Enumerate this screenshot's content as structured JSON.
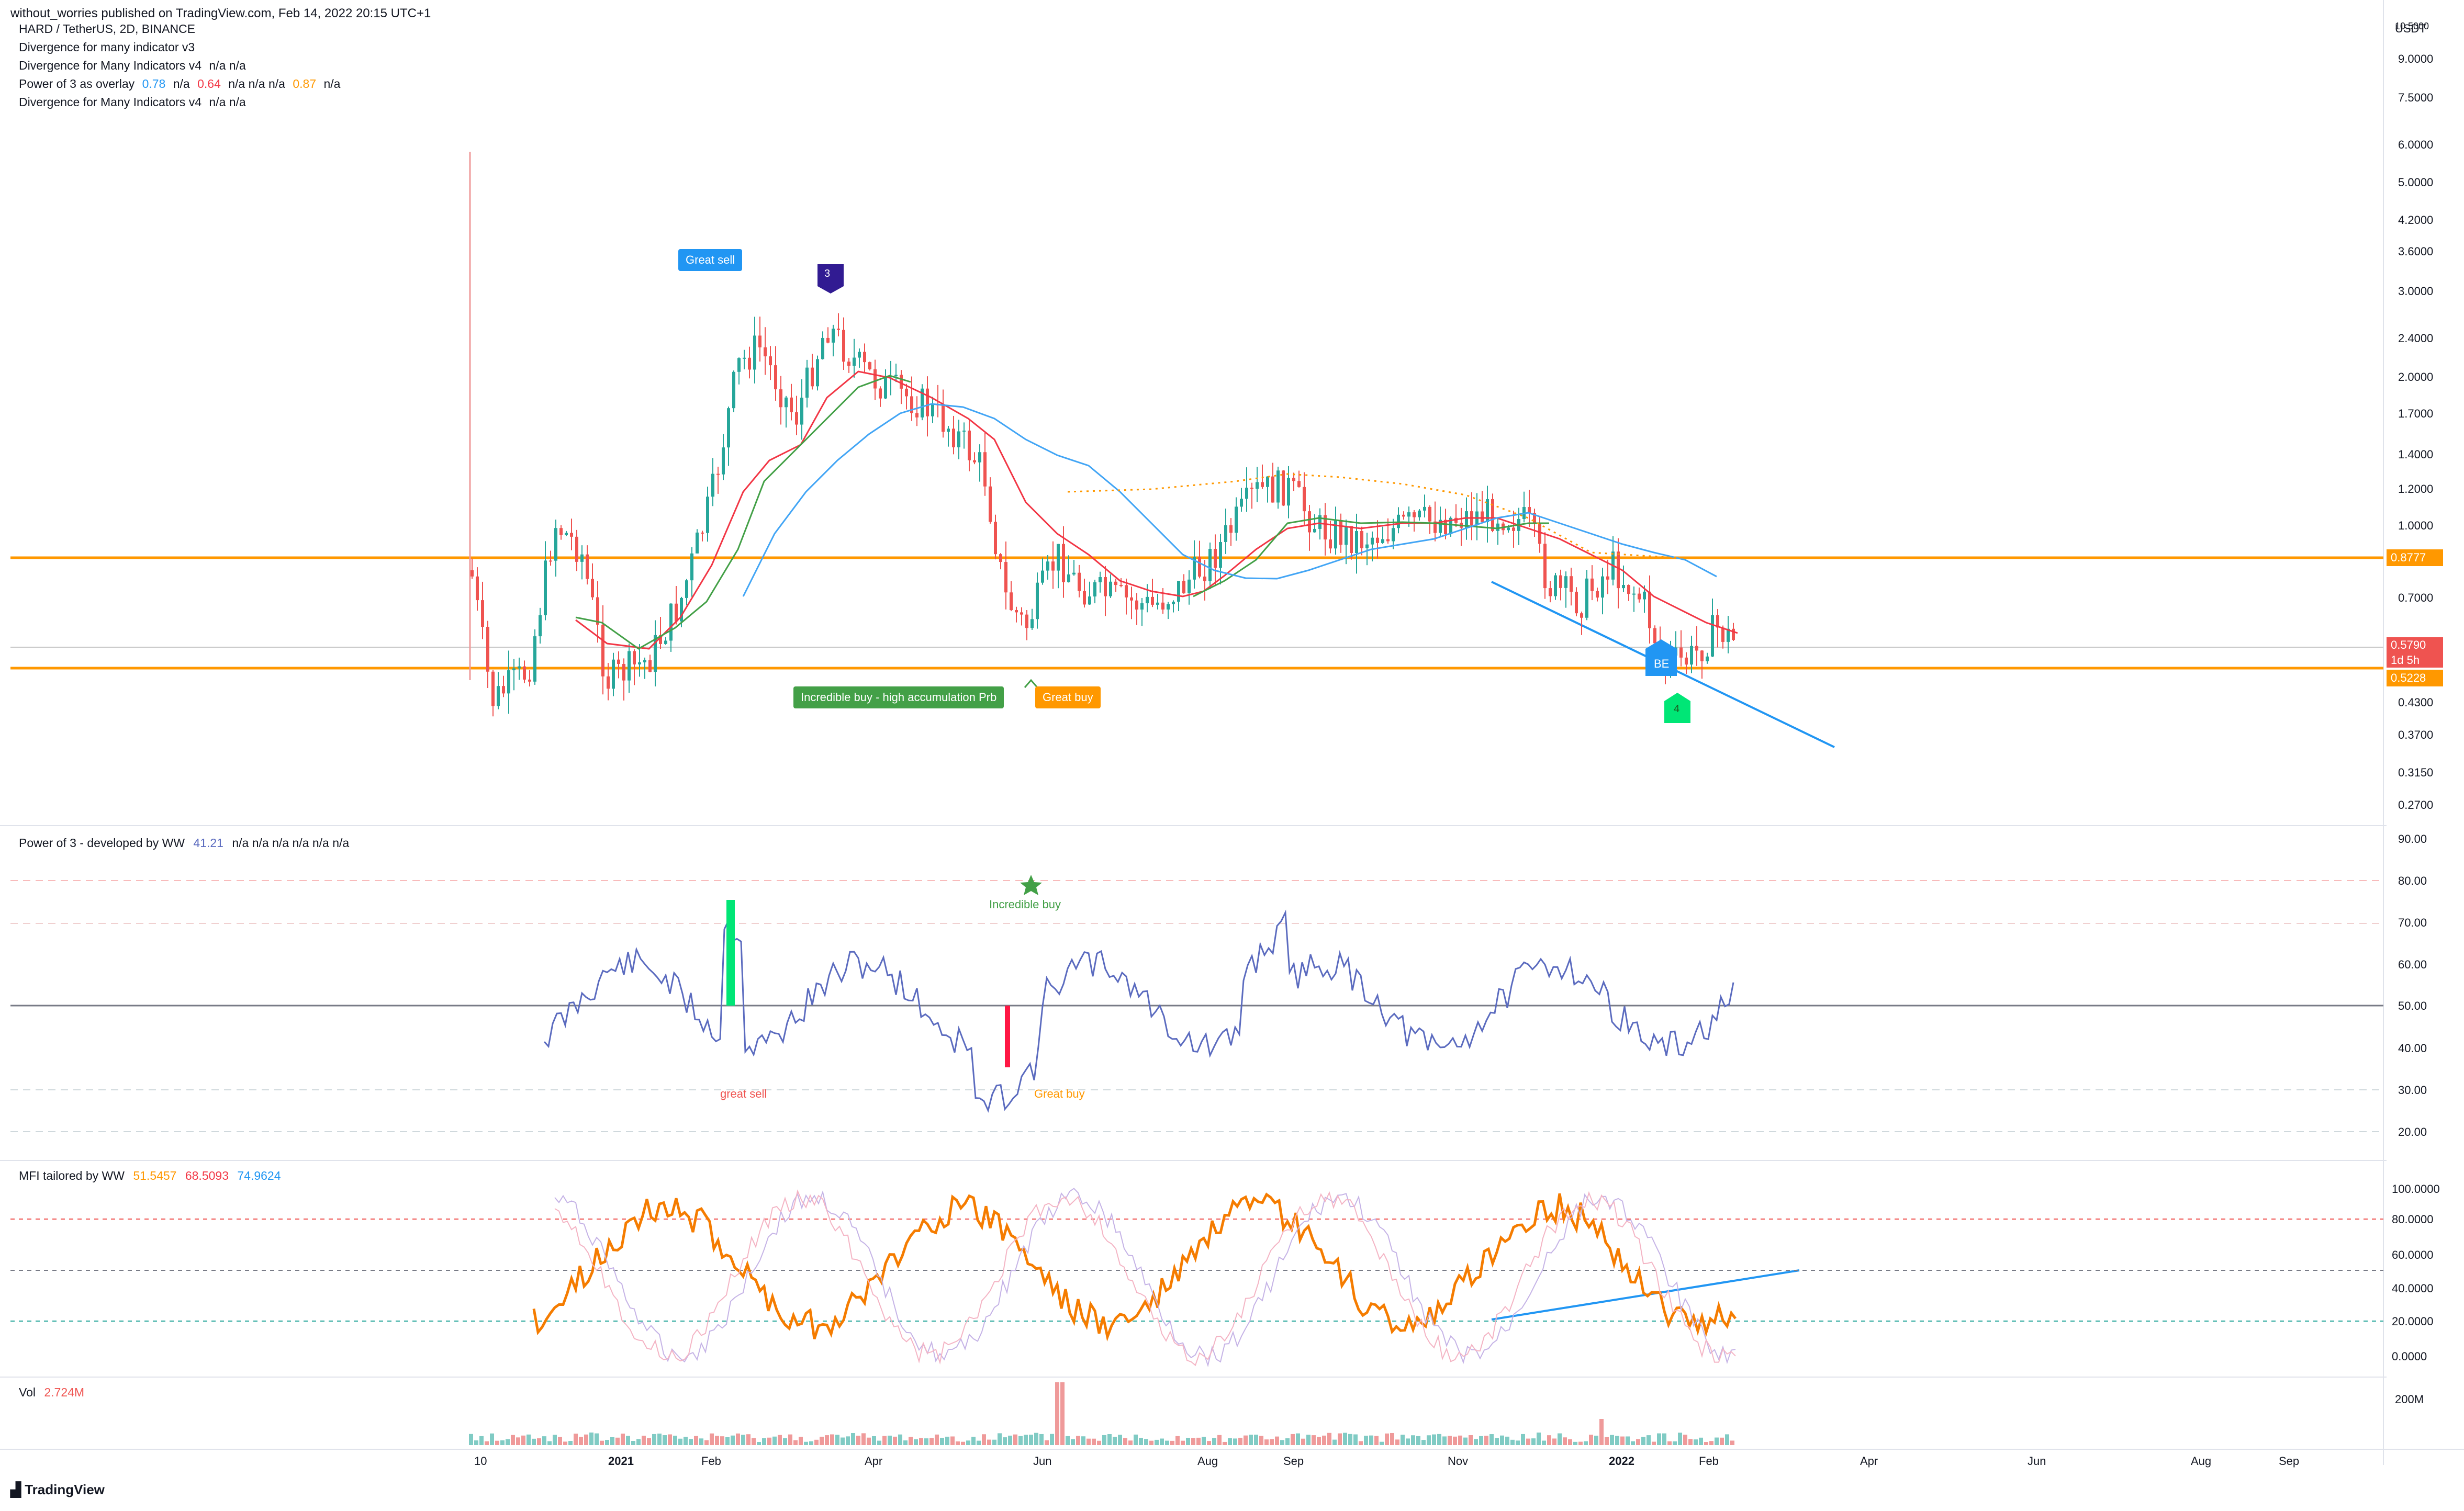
{
  "header": {
    "published": "without_worries published on TradingView.com, Feb 14, 2022 20:15 UTC+1"
  },
  "legend": {
    "symbol": "HARD / TetherUS, 2D, BINANCE",
    "line2": "Divergence for many indicator v3",
    "line3_name": "Divergence for Many Indicators v4",
    "line3_vals": "n/a  n/a",
    "line4_name": "Power of 3 as overlay",
    "line4_v1": "0.78",
    "line4_v2": "n/a",
    "line4_v3": "0.64",
    "line4_v4": "n/a  n/a  n/a",
    "line4_v5": "0.87",
    "line4_v6": "n/a",
    "line5_name": "Divergence for Many Indicators v4",
    "line5_vals": "n/a  n/a"
  },
  "price_axis": {
    "unit": "USDT",
    "top": "10.5000",
    "ticks": [
      "9.0000",
      "7.5000",
      "6.0000",
      "5.0000",
      "4.2000",
      "3.6000",
      "3.0000",
      "2.4000",
      "2.0000",
      "1.7000",
      "1.4000",
      "1.2000",
      "1.0000",
      "0.7000",
      "0.4300",
      "0.3700",
      "0.3150",
      "0.2700"
    ],
    "tag_current": "0.5790",
    "tag_countdown": "1d 5h",
    "tag_resistance": "0.8777",
    "tag_support": "0.5228"
  },
  "signals": {
    "great_sell": "Great sell",
    "marker_3": "3",
    "incredible_buy": "Incredible buy - high accumulation Prb",
    "great_buy": "Great buy",
    "be": "BE",
    "marker_4": "4"
  },
  "pane_power3": {
    "title": "Power of 3 - developed by WW",
    "value": "41.21",
    "na": "n/a  n/a  n/a  n/a  n/a  n/a",
    "ticks": [
      "90.00",
      "80.00",
      "70.00",
      "60.00",
      "50.00",
      "40.00",
      "30.00",
      "20.00"
    ],
    "label_incredible": "Incredible buy",
    "label_great_sell": "great sell",
    "label_great_buy": "Great buy"
  },
  "pane_mfi": {
    "title": "MFI tailored by WW",
    "v1": "51.5457",
    "v2": "68.5093",
    "v3": "74.9624",
    "ticks": [
      "100.0000",
      "80.0000",
      "60.0000",
      "40.0000",
      "20.0000",
      "0.0000"
    ]
  },
  "pane_vol": {
    "title": "Vol",
    "value": "2.724M",
    "tick": "200M"
  },
  "time_axis": [
    "10",
    "2021",
    "Feb",
    "Apr",
    "Jun",
    "Aug",
    "Sep",
    "Nov",
    "2022",
    "Feb",
    "Apr",
    "Jun",
    "Aug",
    "Sep"
  ],
  "footer": {
    "brand": "TradingView"
  },
  "colors": {
    "up": "#26a69a",
    "down": "#ef5350",
    "orange": "#ff9800",
    "blue": "#2196f3",
    "ma_red": "#f23645",
    "ma_green": "#43a047",
    "ma_blue": "#42a5f5",
    "osc": "#5b6bbf"
  }
}
